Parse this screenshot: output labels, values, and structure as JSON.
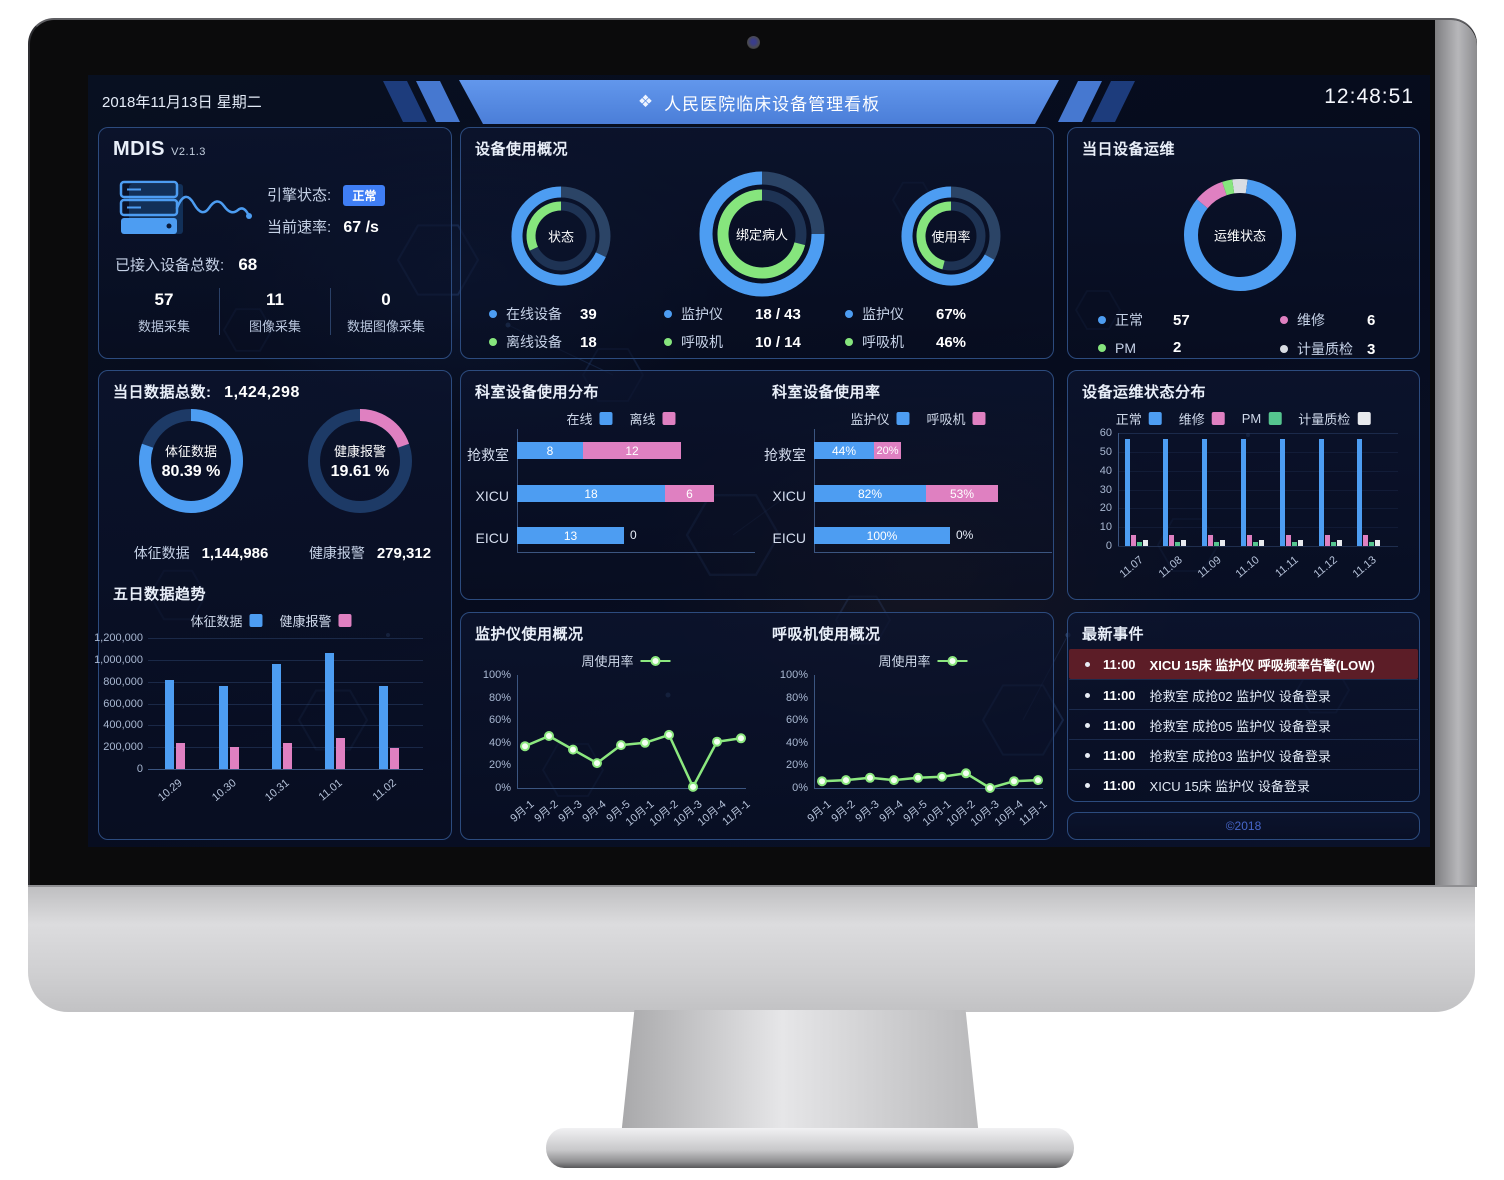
{
  "header": {
    "date": "2018年11月13日 星期二",
    "title": "人民医院临床设备管理看板",
    "title_icon": "pinwheel-icon",
    "time": "12:48:51"
  },
  "colors": {
    "blue": "#4d9df2",
    "green": "#86e57d",
    "pink": "#df80c1",
    "grey": "#d9dde3",
    "teal": "#55c58f",
    "badge": "#3f7ef5",
    "alert_bg": "#5c1d27",
    "track_outer": "#2b4466",
    "track_inner": "#1e3354",
    "track_data": "#1d3a66"
  },
  "mdis": {
    "title": "MDIS",
    "version": "V2.1.3",
    "engine_label": "引擎状态:",
    "engine_status": "正常",
    "rate_label": "当前速率:",
    "rate_value": "67 /s",
    "total_label": "已接入设备总数:",
    "total_value": "68",
    "stats": [
      {
        "value": "57",
        "label": "数据采集"
      },
      {
        "value": "11",
        "label": "图像采集"
      },
      {
        "value": "0",
        "label": "数据图像采集"
      }
    ]
  },
  "usage": {
    "title": "设备使用概况",
    "donuts": [
      {
        "center": "状态",
        "outer": {
          "pct": 68,
          "color": "#4d9df2"
        },
        "inner": {
          "pct": 32,
          "color": "#86e57d"
        },
        "legend": [
          {
            "color": "#4d9df2",
            "label": "在线设备",
            "value": "39"
          },
          {
            "color": "#86e57d",
            "label": "离线设备",
            "value": "18"
          }
        ]
      },
      {
        "center": "绑定病人",
        "outer": {
          "pct": 75,
          "color": "#4d9df2"
        },
        "inner": {
          "pct": 71,
          "color": "#86e57d"
        },
        "legend": [
          {
            "color": "#4d9df2",
            "label": "监护仪",
            "value": "18 / 43"
          },
          {
            "color": "#86e57d",
            "label": "呼吸机",
            "value": "10 / 14"
          }
        ]
      },
      {
        "center": "使用率",
        "outer": {
          "pct": 67,
          "color": "#4d9df2"
        },
        "inner": {
          "pct": 46,
          "color": "#86e57d"
        },
        "legend": [
          {
            "color": "#4d9df2",
            "label": "监护仪",
            "value": "67%"
          },
          {
            "color": "#86e57d",
            "label": "呼吸机",
            "value": "46%"
          }
        ]
      }
    ]
  },
  "ops_today": {
    "title": "当日设备运维",
    "donut_center": "运维状态",
    "start_deg": -8,
    "segments": [
      {
        "label": "计量质检",
        "value": 3,
        "color": "#d9dde3"
      },
      {
        "label": "正常",
        "value": 57,
        "color": "#4d9df2"
      },
      {
        "label": "维修",
        "value": 6,
        "color": "#df80c1"
      },
      {
        "label": "PM",
        "value": 2,
        "color": "#86e57d"
      }
    ],
    "legend": [
      {
        "color": "#4d9df2",
        "label": "正常",
        "value": "57"
      },
      {
        "color": "#df80c1",
        "label": "维修",
        "value": "6"
      },
      {
        "color": "#86e57d",
        "label": "PM",
        "value": "2"
      },
      {
        "color": "#d9dde3",
        "label": "计量质检",
        "value": "3"
      }
    ]
  },
  "data_today": {
    "total_label": "当日数据总数:",
    "total_value": "1,424,298",
    "donuts": [
      {
        "name": "体征数据",
        "pct_text": "80.39 %",
        "pct": 80.39,
        "color": "#4d9df2",
        "stat_label": "体征数据",
        "stat_value": "1,144,986"
      },
      {
        "name": "健康报警",
        "pct_text": "19.61 %",
        "pct": 19.61,
        "color": "#df80c1",
        "stat_label": "健康报警",
        "stat_value": "279,312"
      }
    ],
    "trend": {
      "title": "五日数据趋势",
      "type": "bar",
      "legend": [
        {
          "label": "体征数据",
          "color": "#4d9df2"
        },
        {
          "label": "健康报警",
          "color": "#df80c1"
        }
      ],
      "categories": [
        "10.29",
        "10.30",
        "10.31",
        "11.01",
        "11.02"
      ],
      "series": [
        {
          "name": "体征数据",
          "color": "#4d9df2",
          "values": [
            815000,
            760000,
            960000,
            1065000,
            757000
          ]
        },
        {
          "name": "健康报警",
          "color": "#df80c1",
          "values": [
            237000,
            204000,
            240000,
            280000,
            188000
          ]
        }
      ],
      "ymax": 1200000,
      "yticks": [
        "1,200,000",
        "1,000,000",
        "800,000",
        "600,000",
        "400,000",
        "200,000",
        "0"
      ]
    }
  },
  "dept_dist": {
    "title": "科室设备使用分布",
    "type": "hbar-stacked",
    "legend": [
      {
        "label": "在线",
        "color": "#4d9df2"
      },
      {
        "label": "离线",
        "color": "#df80c1"
      }
    ],
    "rows": [
      {
        "label": "抢救室",
        "values": [
          8,
          12
        ]
      },
      {
        "label": "XICU",
        "values": [
          18,
          6
        ]
      },
      {
        "label": "EICU",
        "values": [
          13,
          0
        ]
      }
    ],
    "series_colors": [
      "#4d9df2",
      "#df80c1"
    ],
    "unit_max": 24
  },
  "dept_rate": {
    "title": "科室设备使用率",
    "type": "hbar-stacked",
    "legend": [
      {
        "label": "监护仪",
        "color": "#4d9df2"
      },
      {
        "label": "呼吸机",
        "color": "#df80c1"
      }
    ],
    "rows": [
      {
        "label": "抢救室",
        "values": [
          44,
          20
        ],
        "texts": [
          "44%",
          "20%"
        ]
      },
      {
        "label": "XICU",
        "values": [
          82,
          53
        ],
        "texts": [
          "82%",
          "53%"
        ]
      },
      {
        "label": "EICU",
        "values": [
          100,
          0
        ],
        "texts": [
          "100%",
          "0%"
        ]
      }
    ],
    "series_colors": [
      "#4d9df2",
      "#df80c1"
    ],
    "unit_max": 135
  },
  "ops_dist": {
    "title": "设备运维状态分布",
    "type": "bar-grouped",
    "legend": [
      {
        "label": "正常",
        "color": "#4d9df2"
      },
      {
        "label": "维修",
        "color": "#df80c1"
      },
      {
        "label": "PM",
        "color": "#55c58f"
      },
      {
        "label": "计量质检",
        "color": "#e8eaee"
      }
    ],
    "categories": [
      "11.07",
      "11.08",
      "11.09",
      "11.10",
      "11.11",
      "11.12",
      "11.13"
    ],
    "series": [
      {
        "name": "正常",
        "color": "#4d9df2",
        "values": [
          57,
          57,
          57,
          57,
          57,
          57,
          57
        ]
      },
      {
        "name": "维修",
        "color": "#df80c1",
        "values": [
          6,
          6,
          6,
          6,
          6,
          6,
          6
        ]
      },
      {
        "name": "PM",
        "color": "#55c58f",
        "values": [
          2,
          2,
          2,
          2,
          2,
          2,
          2
        ]
      },
      {
        "name": "计量质检",
        "color": "#e8eaee",
        "values": [
          3,
          3,
          3,
          3,
          3,
          3,
          3
        ]
      }
    ],
    "ymax": 60,
    "yticks": [
      "60",
      "50",
      "40",
      "30",
      "20",
      "10",
      "0"
    ]
  },
  "monitor_usage": {
    "title": "监护仪使用概况",
    "type": "line",
    "legend_label": "周使用率",
    "line_color": "#8ce87f",
    "x": [
      "9月-1",
      "9月-2",
      "9月-3",
      "9月-4",
      "9月-5",
      "10月-1",
      "10月-2",
      "10月-3",
      "10月-4",
      "11月-1"
    ],
    "values": [
      37,
      46,
      34,
      22,
      38,
      40,
      47,
      1,
      41,
      44
    ],
    "ymax": 100,
    "yticks": [
      "100%",
      "80%",
      "60%",
      "40%",
      "20%",
      "0%"
    ]
  },
  "vent_usage": {
    "title": "呼吸机使用概况",
    "type": "line",
    "legend_label": "周使用率",
    "line_color": "#8ce87f",
    "x": [
      "9月-1",
      "9月-2",
      "9月-3",
      "9月-4",
      "9月-5",
      "10月-1",
      "10月-2",
      "10月-3",
      "10月-4",
      "11月-1"
    ],
    "values": [
      6,
      7,
      9,
      7,
      9,
      10,
      13,
      0,
      6,
      7
    ],
    "ymax": 100,
    "yticks": [
      "100%",
      "80%",
      "60%",
      "40%",
      "20%",
      "0%"
    ]
  },
  "events": {
    "title": "最新事件",
    "items": [
      {
        "time": "11:00",
        "text": "XICU 15床 监护仪 呼吸频率告警(LOW)",
        "alert": true
      },
      {
        "time": "11:00",
        "text": "抢救室 成抢02 监护仪 设备登录",
        "alert": false
      },
      {
        "time": "11:00",
        "text": "抢救室 成抢05 监护仪 设备登录",
        "alert": false
      },
      {
        "time": "11:00",
        "text": "抢救室 成抢03 监护仪 设备登录",
        "alert": false
      },
      {
        "time": "11:00",
        "text": "XICU 15床 监护仪 设备登录",
        "alert": false
      }
    ],
    "copyright": "©2018"
  }
}
